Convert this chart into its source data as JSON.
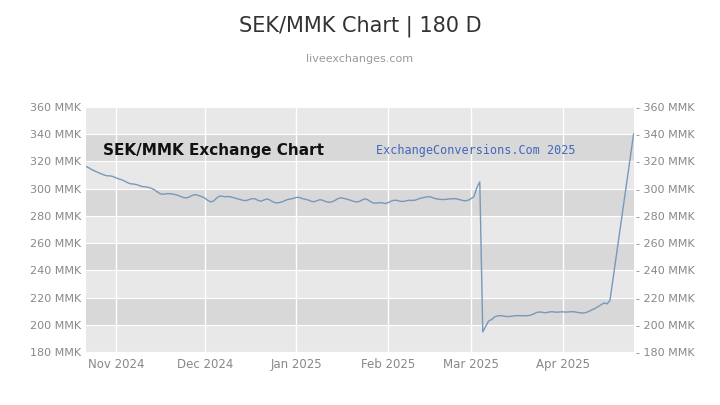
{
  "title": "SEK/MMK Chart | 180 D",
  "subtitle": "liveexchanges.com",
  "watermark": "ExchangeConversions.Com 2025",
  "inner_label": "SEK/MMK Exchange Chart",
  "ylim": [
    180,
    370
  ],
  "yticks": [
    180,
    200,
    220,
    240,
    260,
    280,
    300,
    320,
    340,
    360
  ],
  "line_color": "#7799bb",
  "fig_bg": "#ffffff",
  "plot_bg": "#ffffff",
  "band_light": "#e8e8e8",
  "band_dark": "#d8d8d8",
  "title_color": "#333333",
  "subtitle_color": "#999999",
  "watermark_color": "#4466bb",
  "inner_label_color": "#111111",
  "grid_color": "#ffffff",
  "tick_color": "#888888"
}
